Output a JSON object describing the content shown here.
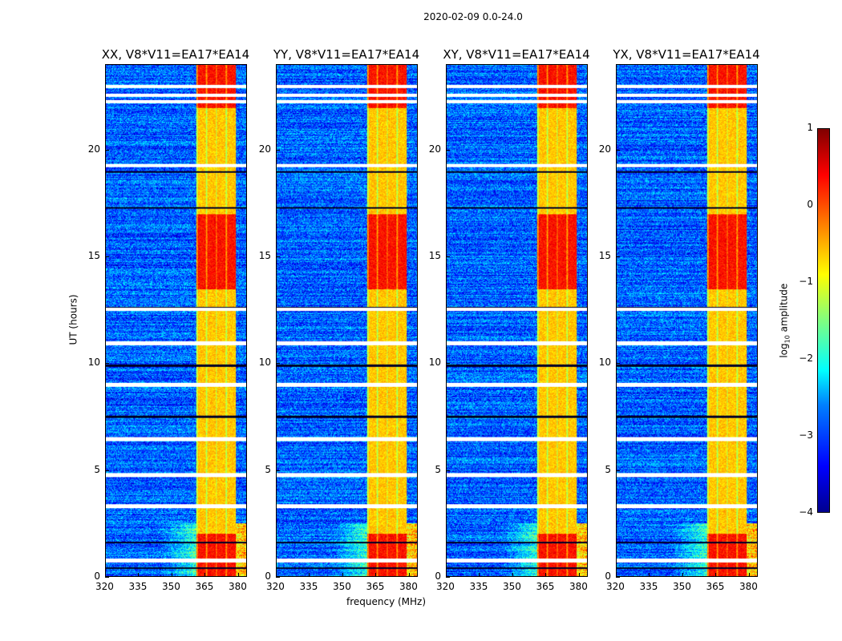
{
  "chart_data": {
    "type": "heatmap",
    "title": "2020-02-09 0.0-24.0",
    "panels": [
      {
        "title": "XX, V8*V11=EA17*EA14"
      },
      {
        "title": "YY, V8*V11=EA17*EA14"
      },
      {
        "title": "XY, V8*V11=EA17*EA14"
      },
      {
        "title": "YX, V8*V11=EA17*EA14"
      }
    ],
    "xlabel": "frequency (MHz)",
    "ylabel": "UT (hours)",
    "xlim": [
      320,
      384
    ],
    "ylim": [
      0,
      24
    ],
    "xticks": [
      "320",
      "335",
      "350",
      "365",
      "380"
    ],
    "yticks": [
      "0",
      "5",
      "10",
      "15",
      "20"
    ],
    "xtick_values": [
      320,
      335,
      350,
      365,
      380
    ],
    "ytick_values": [
      0,
      5,
      10,
      15,
      20
    ],
    "colorbar": {
      "label": "log10 amplitude",
      "label_main": "log",
      "label_sub": "10",
      "label_rest": " amplitude",
      "ticks": [
        "1",
        "0",
        "−1",
        "−2",
        "−3",
        "−4"
      ],
      "tick_values": [
        1,
        0,
        -1,
        -2,
        -3,
        -4
      ],
      "range": [
        -4,
        1
      ]
    },
    "model": {
      "background_log_amp": -2.9,
      "rfi_band_mhz": [
        361,
        379
      ],
      "rfi_band_log_amp": -0.6,
      "strong_hours": [
        [
          0,
          2
        ],
        [
          13.5,
          17
        ],
        [
          22,
          24
        ]
      ],
      "flagged_hours": [
        0.75,
        3.3,
        4.76,
        6.45,
        9.0,
        10.95,
        12.55,
        19.3,
        22.3,
        22.6,
        23.0
      ],
      "dark_hours": [
        0.4,
        1.6,
        7.5,
        9.9,
        12.6,
        19.0,
        17.3
      ]
    }
  }
}
